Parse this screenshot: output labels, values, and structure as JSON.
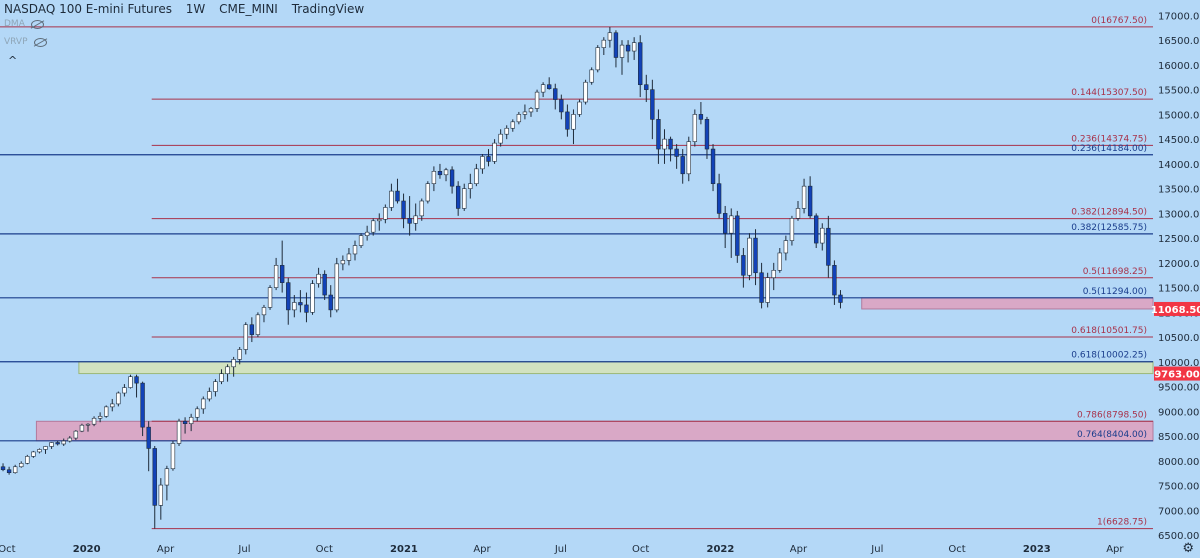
{
  "header": {
    "symbol": "NASDAQ 100 E-mini Futures",
    "interval": "1W",
    "exchange": "CME_MINI",
    "brand": "TradingView"
  },
  "indicators": [
    {
      "label": "DMA",
      "icon": "eye-off-icon"
    },
    {
      "label": "VRVP",
      "icon": "eye-off-icon"
    }
  ],
  "icons": {
    "collapse": "^",
    "settings": "⚙"
  },
  "colors": {
    "background": "#b4d8f7",
    "up_candle": "#ffffff",
    "down_candle": "#1242b8",
    "fib_red": "#a8324a",
    "fib_blue": "#1a3d8c",
    "zone_pink": "#d9a8c6",
    "zone_green": "#d2e2c0",
    "price_tag": "#f23645"
  },
  "chart_data": {
    "type": "candlestick",
    "title": "NASDAQ 100 E-mini Futures",
    "interval": "1W",
    "ylim": [
      6400,
      17150
    ],
    "y_ticks": [
      6500,
      7000,
      7500,
      8000,
      8500,
      9000,
      9500,
      10000,
      10500,
      11000,
      11500,
      12000,
      12500,
      13000,
      13500,
      14000,
      14500,
      15000,
      15500,
      16000,
      16500,
      17000
    ],
    "y_tick_labels": [
      "6500.00",
      "7000.00",
      "7500.00",
      "8000.00",
      "8500.00",
      "9000.00",
      "9500.00",
      "10000.00",
      "10500.00",
      "11000.00",
      "11500.00",
      "12000.00",
      "12500.00",
      "13000.00",
      "13500.00",
      "14000.00",
      "14500.00",
      "15000.00",
      "15500.00",
      "16000.00",
      "16500.00",
      "17000.00"
    ],
    "x_range": [
      "2019-09-23",
      "2023-05-15"
    ],
    "x_ticks": [
      {
        "date": "2019-10-01",
        "label": "Oct"
      },
      {
        "date": "2020-01-01",
        "label": "2020"
      },
      {
        "date": "2020-04-01",
        "label": "Apr"
      },
      {
        "date": "2020-07-01",
        "label": "Jul"
      },
      {
        "date": "2020-10-01",
        "label": "Oct"
      },
      {
        "date": "2021-01-01",
        "label": "2021"
      },
      {
        "date": "2021-04-01",
        "label": "Apr"
      },
      {
        "date": "2021-07-01",
        "label": "Jul"
      },
      {
        "date": "2021-10-01",
        "label": "Oct"
      },
      {
        "date": "2022-01-01",
        "label": "2022"
      },
      {
        "date": "2022-04-01",
        "label": "Apr"
      },
      {
        "date": "2022-07-01",
        "label": "Jul"
      },
      {
        "date": "2022-10-01",
        "label": "Oct"
      },
      {
        "date": "2023-01-01",
        "label": "2023"
      },
      {
        "date": "2023-04-01",
        "label": "Apr"
      }
    ],
    "fib_levels": [
      {
        "label": "0(16767.50)",
        "value": 16767.5,
        "start": "2019-09-23",
        "color": "fib_red"
      },
      {
        "label": "0.144(15307.50)",
        "value": 15307.5,
        "start": "2020-03-16",
        "color": "fib_red"
      },
      {
        "label": "0.236(14374.75)",
        "value": 14374.75,
        "start": "2020-03-16",
        "color": "fib_red"
      },
      {
        "label": "0.236(14184.00)",
        "value": 14184.0,
        "start": "2019-09-23",
        "color": "fib_blue"
      },
      {
        "label": "0.382(12894.50)",
        "value": 12894.5,
        "start": "2020-03-16",
        "color": "fib_red"
      },
      {
        "label": "0.382(12585.75)",
        "value": 12585.75,
        "start": "2019-09-23",
        "color": "fib_blue"
      },
      {
        "label": "0.5(11698.25)",
        "value": 11698.25,
        "start": "2020-03-16",
        "color": "fib_red"
      },
      {
        "label": "0.5(11294.00)",
        "value": 11294.0,
        "start": "2019-09-23",
        "color": "fib_blue"
      },
      {
        "label": "0.618(10501.75)",
        "value": 10501.75,
        "start": "2020-03-16",
        "color": "fib_red"
      },
      {
        "label": "0.618(10002.25)",
        "value": 10002.25,
        "start": "2019-09-23",
        "color": "fib_blue"
      },
      {
        "label": "0.786(8798.50)",
        "value": 8798.5,
        "start": "2020-03-16",
        "color": "fib_red"
      },
      {
        "label": "0.764(8404.00)",
        "value": 8404.0,
        "start": "2019-09-23",
        "color": "fib_blue"
      },
      {
        "label": "1(6628.75)",
        "value": 6628.75,
        "start": "2020-03-16",
        "color": "fib_red"
      }
    ],
    "zones": [
      {
        "name": "zone-8404-8798",
        "low": 8404,
        "high": 8798.5,
        "start": "2019-11-04",
        "color": "zone_pink"
      },
      {
        "name": "zone-9763-10002",
        "low": 9763,
        "high": 10002.25,
        "start": "2019-12-23",
        "color": "zone_green"
      },
      {
        "name": "zone-11068-11294",
        "low": 11068.5,
        "high": 11294,
        "start": "2022-06-13",
        "color": "zone_pink"
      }
    ],
    "price_tags": [
      {
        "label": "11068.50",
        "value": 11068.5
      },
      {
        "label": "9763.00",
        "value": 9763.0
      }
    ],
    "first_week": "2019-09-23",
    "candles": [
      [
        7880,
        7950,
        7790,
        7820
      ],
      [
        7820,
        7880,
        7720,
        7760
      ],
      [
        7760,
        7920,
        7740,
        7880
      ],
      [
        7880,
        7990,
        7860,
        7950
      ],
      [
        7950,
        8120,
        7930,
        8090
      ],
      [
        8090,
        8200,
        8060,
        8180
      ],
      [
        8180,
        8250,
        8150,
        8230
      ],
      [
        8230,
        8300,
        8140,
        8290
      ],
      [
        8290,
        8380,
        8240,
        8370
      ],
      [
        8370,
        8400,
        8310,
        8340
      ],
      [
        8340,
        8450,
        8300,
        8400
      ],
      [
        8400,
        8500,
        8370,
        8460
      ],
      [
        8460,
        8620,
        8420,
        8600
      ],
      [
        8600,
        8750,
        8580,
        8720
      ],
      [
        8720,
        8760,
        8590,
        8740
      ],
      [
        8740,
        8900,
        8700,
        8860
      ],
      [
        8860,
        8980,
        8780,
        8900
      ],
      [
        8900,
        9120,
        8870,
        9090
      ],
      [
        9090,
        9250,
        9000,
        9150
      ],
      [
        9150,
        9400,
        9100,
        9370
      ],
      [
        9370,
        9550,
        9300,
        9480
      ],
      [
        9480,
        9740,
        9460,
        9700
      ],
      [
        9700,
        9740,
        9280,
        9570
      ],
      [
        9570,
        9600,
        8500,
        8680
      ],
      [
        8680,
        8800,
        7790,
        8250
      ],
      [
        8250,
        8300,
        6630,
        7100
      ],
      [
        7100,
        7650,
        6810,
        7510
      ],
      [
        7510,
        7900,
        7200,
        7840
      ],
      [
        7840,
        8400,
        7800,
        8350
      ],
      [
        8350,
        8850,
        8300,
        8800
      ],
      [
        8800,
        8880,
        8550,
        8750
      ],
      [
        8750,
        8950,
        8600,
        8880
      ],
      [
        8880,
        9100,
        8800,
        9050
      ],
      [
        9050,
        9300,
        8950,
        9250
      ],
      [
        9250,
        9480,
        9200,
        9400
      ],
      [
        9400,
        9650,
        9300,
        9600
      ],
      [
        9600,
        9850,
        9550,
        9760
      ],
      [
        9760,
        9950,
        9600,
        9900
      ],
      [
        9900,
        10100,
        9700,
        10050
      ],
      [
        10050,
        10300,
        9950,
        10250
      ],
      [
        10250,
        10800,
        10150,
        10750
      ],
      [
        10750,
        10900,
        10400,
        10550
      ],
      [
        10550,
        11000,
        10500,
        10950
      ],
      [
        10950,
        11150,
        10800,
        11100
      ],
      [
        11100,
        11550,
        11050,
        11500
      ],
      [
        11500,
        12100,
        11450,
        11950
      ],
      [
        11950,
        12450,
        11400,
        11600
      ],
      [
        11600,
        11700,
        10750,
        11050
      ],
      [
        11050,
        11350,
        10900,
        11200
      ],
      [
        11200,
        11450,
        11000,
        11150
      ],
      [
        11150,
        11400,
        10800,
        11000
      ],
      [
        11000,
        11650,
        10950,
        11580
      ],
      [
        11580,
        11900,
        11500,
        11770
      ],
      [
        11770,
        11850,
        11250,
        11350
      ],
      [
        11350,
        11550,
        10900,
        11050
      ],
      [
        11050,
        12100,
        11000,
        11980
      ],
      [
        11980,
        12150,
        11850,
        12050
      ],
      [
        12050,
        12300,
        11950,
        12180
      ],
      [
        12180,
        12450,
        12050,
        12350
      ],
      [
        12350,
        12600,
        12300,
        12550
      ],
      [
        12550,
        12750,
        12450,
        12620
      ],
      [
        12620,
        12900,
        12550,
        12850
      ],
      [
        12850,
        13000,
        12650,
        12880
      ],
      [
        12880,
        13180,
        12800,
        13120
      ],
      [
        13120,
        13600,
        13050,
        13450
      ],
      [
        13450,
        13700,
        13200,
        13250
      ],
      [
        13250,
        13400,
        12700,
        12900
      ],
      [
        12900,
        13350,
        12550,
        12800
      ],
      [
        12800,
        13200,
        12650,
        12950
      ],
      [
        12950,
        13300,
        12850,
        13250
      ],
      [
        13250,
        13650,
        13200,
        13600
      ],
      [
        13600,
        13950,
        13450,
        13850
      ],
      [
        13850,
        14000,
        13700,
        13780
      ],
      [
        13780,
        13920,
        13650,
        13880
      ],
      [
        13880,
        13950,
        13400,
        13550
      ],
      [
        13550,
        13650,
        12950,
        13100
      ],
      [
        13100,
        13600,
        13050,
        13500
      ],
      [
        13500,
        13800,
        13300,
        13600
      ],
      [
        13600,
        14000,
        13550,
        13900
      ],
      [
        13900,
        14200,
        13800,
        14150
      ],
      [
        14150,
        14300,
        13950,
        14050
      ],
      [
        14050,
        14500,
        14000,
        14420
      ],
      [
        14420,
        14700,
        14350,
        14600
      ],
      [
        14600,
        14780,
        14500,
        14720
      ],
      [
        14720,
        14900,
        14650,
        14850
      ],
      [
        14850,
        15050,
        14800,
        15000
      ],
      [
        15000,
        15200,
        14900,
        15050
      ],
      [
        15050,
        15150,
        14950,
        15120
      ],
      [
        15120,
        15500,
        15050,
        15450
      ],
      [
        15450,
        15650,
        15350,
        15600
      ],
      [
        15600,
        15750,
        15500,
        15520
      ],
      [
        15520,
        15620,
        15100,
        15300
      ],
      [
        15300,
        15400,
        14900,
        15050
      ],
      [
        15050,
        15200,
        14550,
        14700
      ],
      [
        14700,
        15100,
        14400,
        15000
      ],
      [
        15000,
        15300,
        14950,
        15250
      ],
      [
        15250,
        15700,
        15200,
        15650
      ],
      [
        15650,
        15950,
        15600,
        15900
      ],
      [
        15900,
        16400,
        15850,
        16350
      ],
      [
        16350,
        16560,
        16200,
        16500
      ],
      [
        16500,
        16767,
        16350,
        16650
      ],
      [
        16650,
        16700,
        15950,
        16150
      ],
      [
        16150,
        16500,
        15800,
        16400
      ],
      [
        16400,
        16500,
        16050,
        16280
      ],
      [
        16280,
        16560,
        16100,
        16450
      ],
      [
        16450,
        16600,
        15350,
        15600
      ],
      [
        15600,
        15800,
        15250,
        15500
      ],
      [
        15500,
        15700,
        14500,
        14900
      ],
      [
        14900,
        15100,
        14000,
        14300
      ],
      [
        14300,
        14700,
        14000,
        14500
      ],
      [
        14500,
        14550,
        14050,
        14300
      ],
      [
        14300,
        14400,
        13900,
        14150
      ],
      [
        14150,
        14300,
        13600,
        13800
      ],
      [
        13800,
        14550,
        13650,
        14450
      ],
      [
        14450,
        15100,
        14350,
        15000
      ],
      [
        15000,
        15250,
        14800,
        14900
      ],
      [
        14900,
        14950,
        14100,
        14300
      ],
      [
        14300,
        14400,
        13450,
        13600
      ],
      [
        13600,
        13800,
        12900,
        13000
      ],
      [
        13000,
        13150,
        12300,
        12600
      ],
      [
        12600,
        13100,
        12100,
        12950
      ],
      [
        12950,
        13050,
        12000,
        12150
      ],
      [
        12150,
        12300,
        11500,
        11750
      ],
      [
        11750,
        12600,
        11650,
        12500
      ],
      [
        12500,
        12680,
        11550,
        11800
      ],
      [
        11800,
        12000,
        11080,
        11200
      ],
      [
        11200,
        11800,
        11100,
        11700
      ],
      [
        11700,
        12000,
        11450,
        11850
      ],
      [
        11850,
        12300,
        11800,
        12200
      ],
      [
        12200,
        12550,
        12050,
        12450
      ],
      [
        12450,
        12950,
        12350,
        12900
      ],
      [
        12900,
        13250,
        12850,
        13100
      ],
      [
        13100,
        13700,
        13000,
        13550
      ],
      [
        13550,
        13750,
        12900,
        12950
      ],
      [
        12950,
        13000,
        12300,
        12400
      ],
      [
        12400,
        12800,
        12250,
        12700
      ],
      [
        12700,
        12950,
        11700,
        11950
      ],
      [
        11950,
        12050,
        11150,
        11350
      ],
      [
        11350,
        11450,
        11080,
        11200
      ]
    ]
  }
}
